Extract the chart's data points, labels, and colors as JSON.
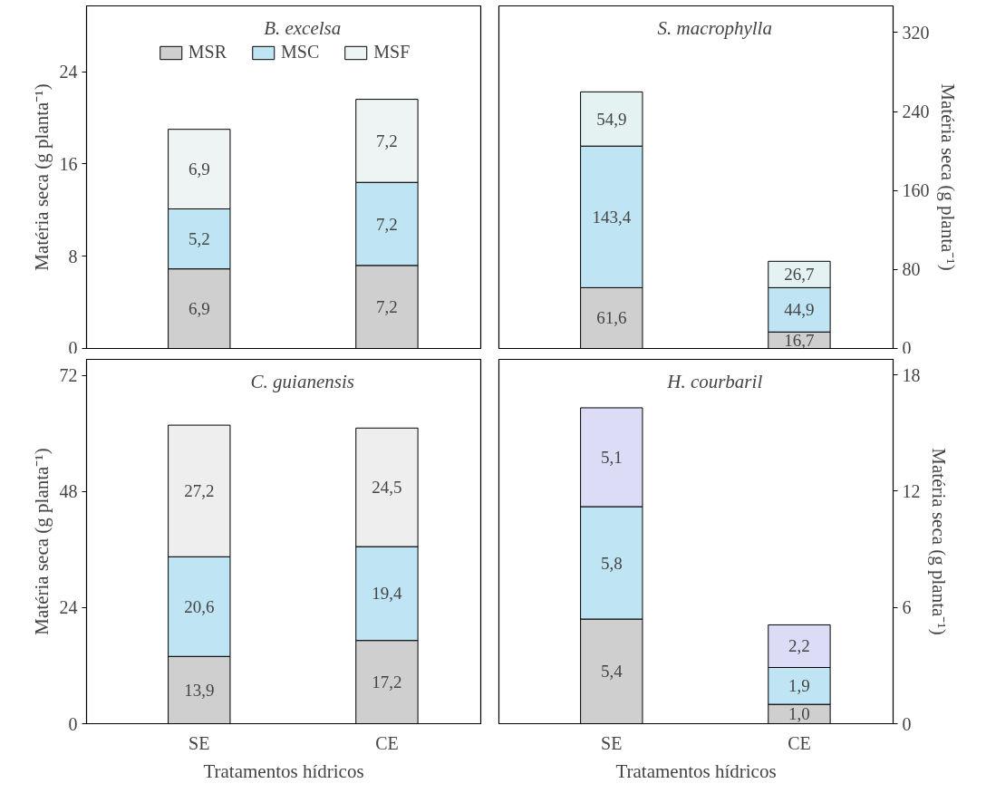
{
  "chart_data": [
    {
      "type": "bar",
      "stacked": true,
      "title": "B. excelsa",
      "categories": [
        null,
        null
      ],
      "ylabel": "Matéria seca (g planta⁻¹)",
      "ylim": [
        0,
        29.7
      ],
      "yticks": [
        0,
        8,
        16,
        24
      ],
      "legend": "top",
      "grid": false,
      "series": [
        {
          "name": "MSR",
          "color": "#cfcfcf",
          "values": [
            6.9,
            7.2
          ],
          "value_labels": [
            "6,9",
            "7,2"
          ]
        },
        {
          "name": "MSC",
          "color": "#bfe4f4",
          "values": [
            5.2,
            7.2
          ],
          "value_labels": [
            "5,2",
            "7,2"
          ]
        },
        {
          "name": "MSF",
          "color": "#eef3f3",
          "values": [
            6.9,
            7.2
          ],
          "value_labels": [
            "6,9",
            "7,2"
          ]
        }
      ]
    },
    {
      "type": "bar",
      "stacked": true,
      "title": "S. macrophylla",
      "categories": [
        null,
        null
      ],
      "ylabel": "Matéria seca (g planta⁻¹)",
      "ylim": [
        0,
        347
      ],
      "yticks": [
        0,
        80,
        160,
        240,
        320
      ],
      "grid": false,
      "series": [
        {
          "color": "#cfcfcf",
          "values": [
            61.6,
            16.7
          ],
          "value_labels": [
            "61,6",
            "16,7"
          ]
        },
        {
          "color": "#bfe4f4",
          "values": [
            143.4,
            44.9
          ],
          "value_labels": [
            "143,4",
            "44,9"
          ]
        },
        {
          "color": "#e4f2f2",
          "values": [
            54.9,
            26.7
          ],
          "value_labels": [
            "54,9",
            "26,7"
          ]
        }
      ]
    },
    {
      "type": "bar",
      "stacked": true,
      "title": "C. guianensis",
      "categories": [
        "SE",
        "CE"
      ],
      "xlabel": "Tratamentos hídricos",
      "ylabel": "Matéria seca (g planta⁻¹)",
      "ylim": [
        0,
        75.3
      ],
      "yticks": [
        0,
        24,
        48,
        72
      ],
      "grid": false,
      "series": [
        {
          "color": "#cfcfcf",
          "values": [
            13.9,
            17.2
          ],
          "value_labels": [
            "13,9",
            "17,2"
          ]
        },
        {
          "color": "#bfe4f4",
          "values": [
            20.6,
            19.4
          ],
          "value_labels": [
            "20,6",
            "19,4"
          ]
        },
        {
          "color": "#eeeeee",
          "values": [
            27.2,
            24.5
          ],
          "value_labels": [
            "27,2",
            "24,5"
          ]
        }
      ]
    },
    {
      "type": "bar",
      "stacked": true,
      "title": "H. courbaril",
      "categories": [
        "SE",
        "CE"
      ],
      "xlabel": "Tratamentos hídricos",
      "ylabel": "Matéria seca (g planta⁻¹)",
      "ylim": [
        0,
        18.8
      ],
      "yticks": [
        0,
        6,
        12,
        18
      ],
      "grid": false,
      "series": [
        {
          "color": "#cfcfcf",
          "values": [
            5.4,
            1.0
          ],
          "value_labels": [
            "5,4",
            "1,0"
          ]
        },
        {
          "color": "#bfe4f4",
          "values": [
            5.8,
            1.9
          ],
          "value_labels": [
            "5,8",
            "1,9"
          ]
        },
        {
          "color": "#dcdcf6",
          "values": [
            5.1,
            2.2
          ],
          "value_labels": [
            "5,1",
            "2,2"
          ]
        }
      ]
    }
  ]
}
